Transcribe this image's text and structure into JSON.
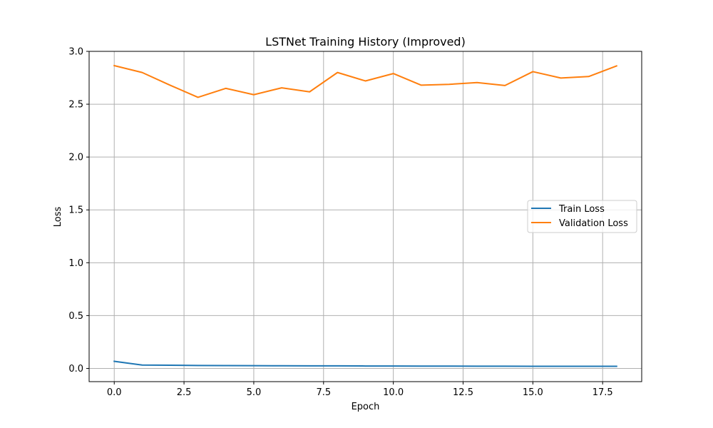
{
  "chart_data": {
    "type": "line",
    "title": "LSTNet Training History (Improved)",
    "xlabel": "Epoch",
    "ylabel": "Loss",
    "xlim": [
      -0.9,
      18.9
    ],
    "ylim": [
      -0.125,
      3.0
    ],
    "xticks": [
      0.0,
      2.5,
      5.0,
      7.5,
      10.0,
      12.5,
      15.0,
      17.5
    ],
    "xtick_labels": [
      "0.0",
      "2.5",
      "5.0",
      "7.5",
      "10.0",
      "12.5",
      "15.0",
      "17.5"
    ],
    "yticks": [
      0.0,
      0.5,
      1.0,
      1.5,
      2.0,
      2.5,
      3.0
    ],
    "ytick_labels": [
      "0.0",
      "0.5",
      "1.0",
      "1.5",
      "2.0",
      "2.5",
      "3.0"
    ],
    "grid": true,
    "legend_position": "center-right",
    "x": [
      0,
      1,
      2,
      3,
      4,
      5,
      6,
      7,
      8,
      9,
      10,
      11,
      12,
      13,
      14,
      15,
      16,
      17,
      18
    ],
    "series": [
      {
        "name": "Train Loss",
        "color": "#1f77b4",
        "values": [
          0.067,
          0.032,
          0.03,
          0.028,
          0.027,
          0.026,
          0.025,
          0.024,
          0.024,
          0.023,
          0.023,
          0.022,
          0.022,
          0.021,
          0.021,
          0.02,
          0.02,
          0.02,
          0.02
        ]
      },
      {
        "name": "Validation Loss",
        "color": "#ff7f0e",
        "values": [
          2.865,
          2.8,
          2.68,
          2.565,
          2.65,
          2.59,
          2.655,
          2.617,
          2.8,
          2.72,
          2.79,
          2.68,
          2.688,
          2.705,
          2.677,
          2.808,
          2.748,
          2.762,
          2.862
        ]
      }
    ]
  }
}
